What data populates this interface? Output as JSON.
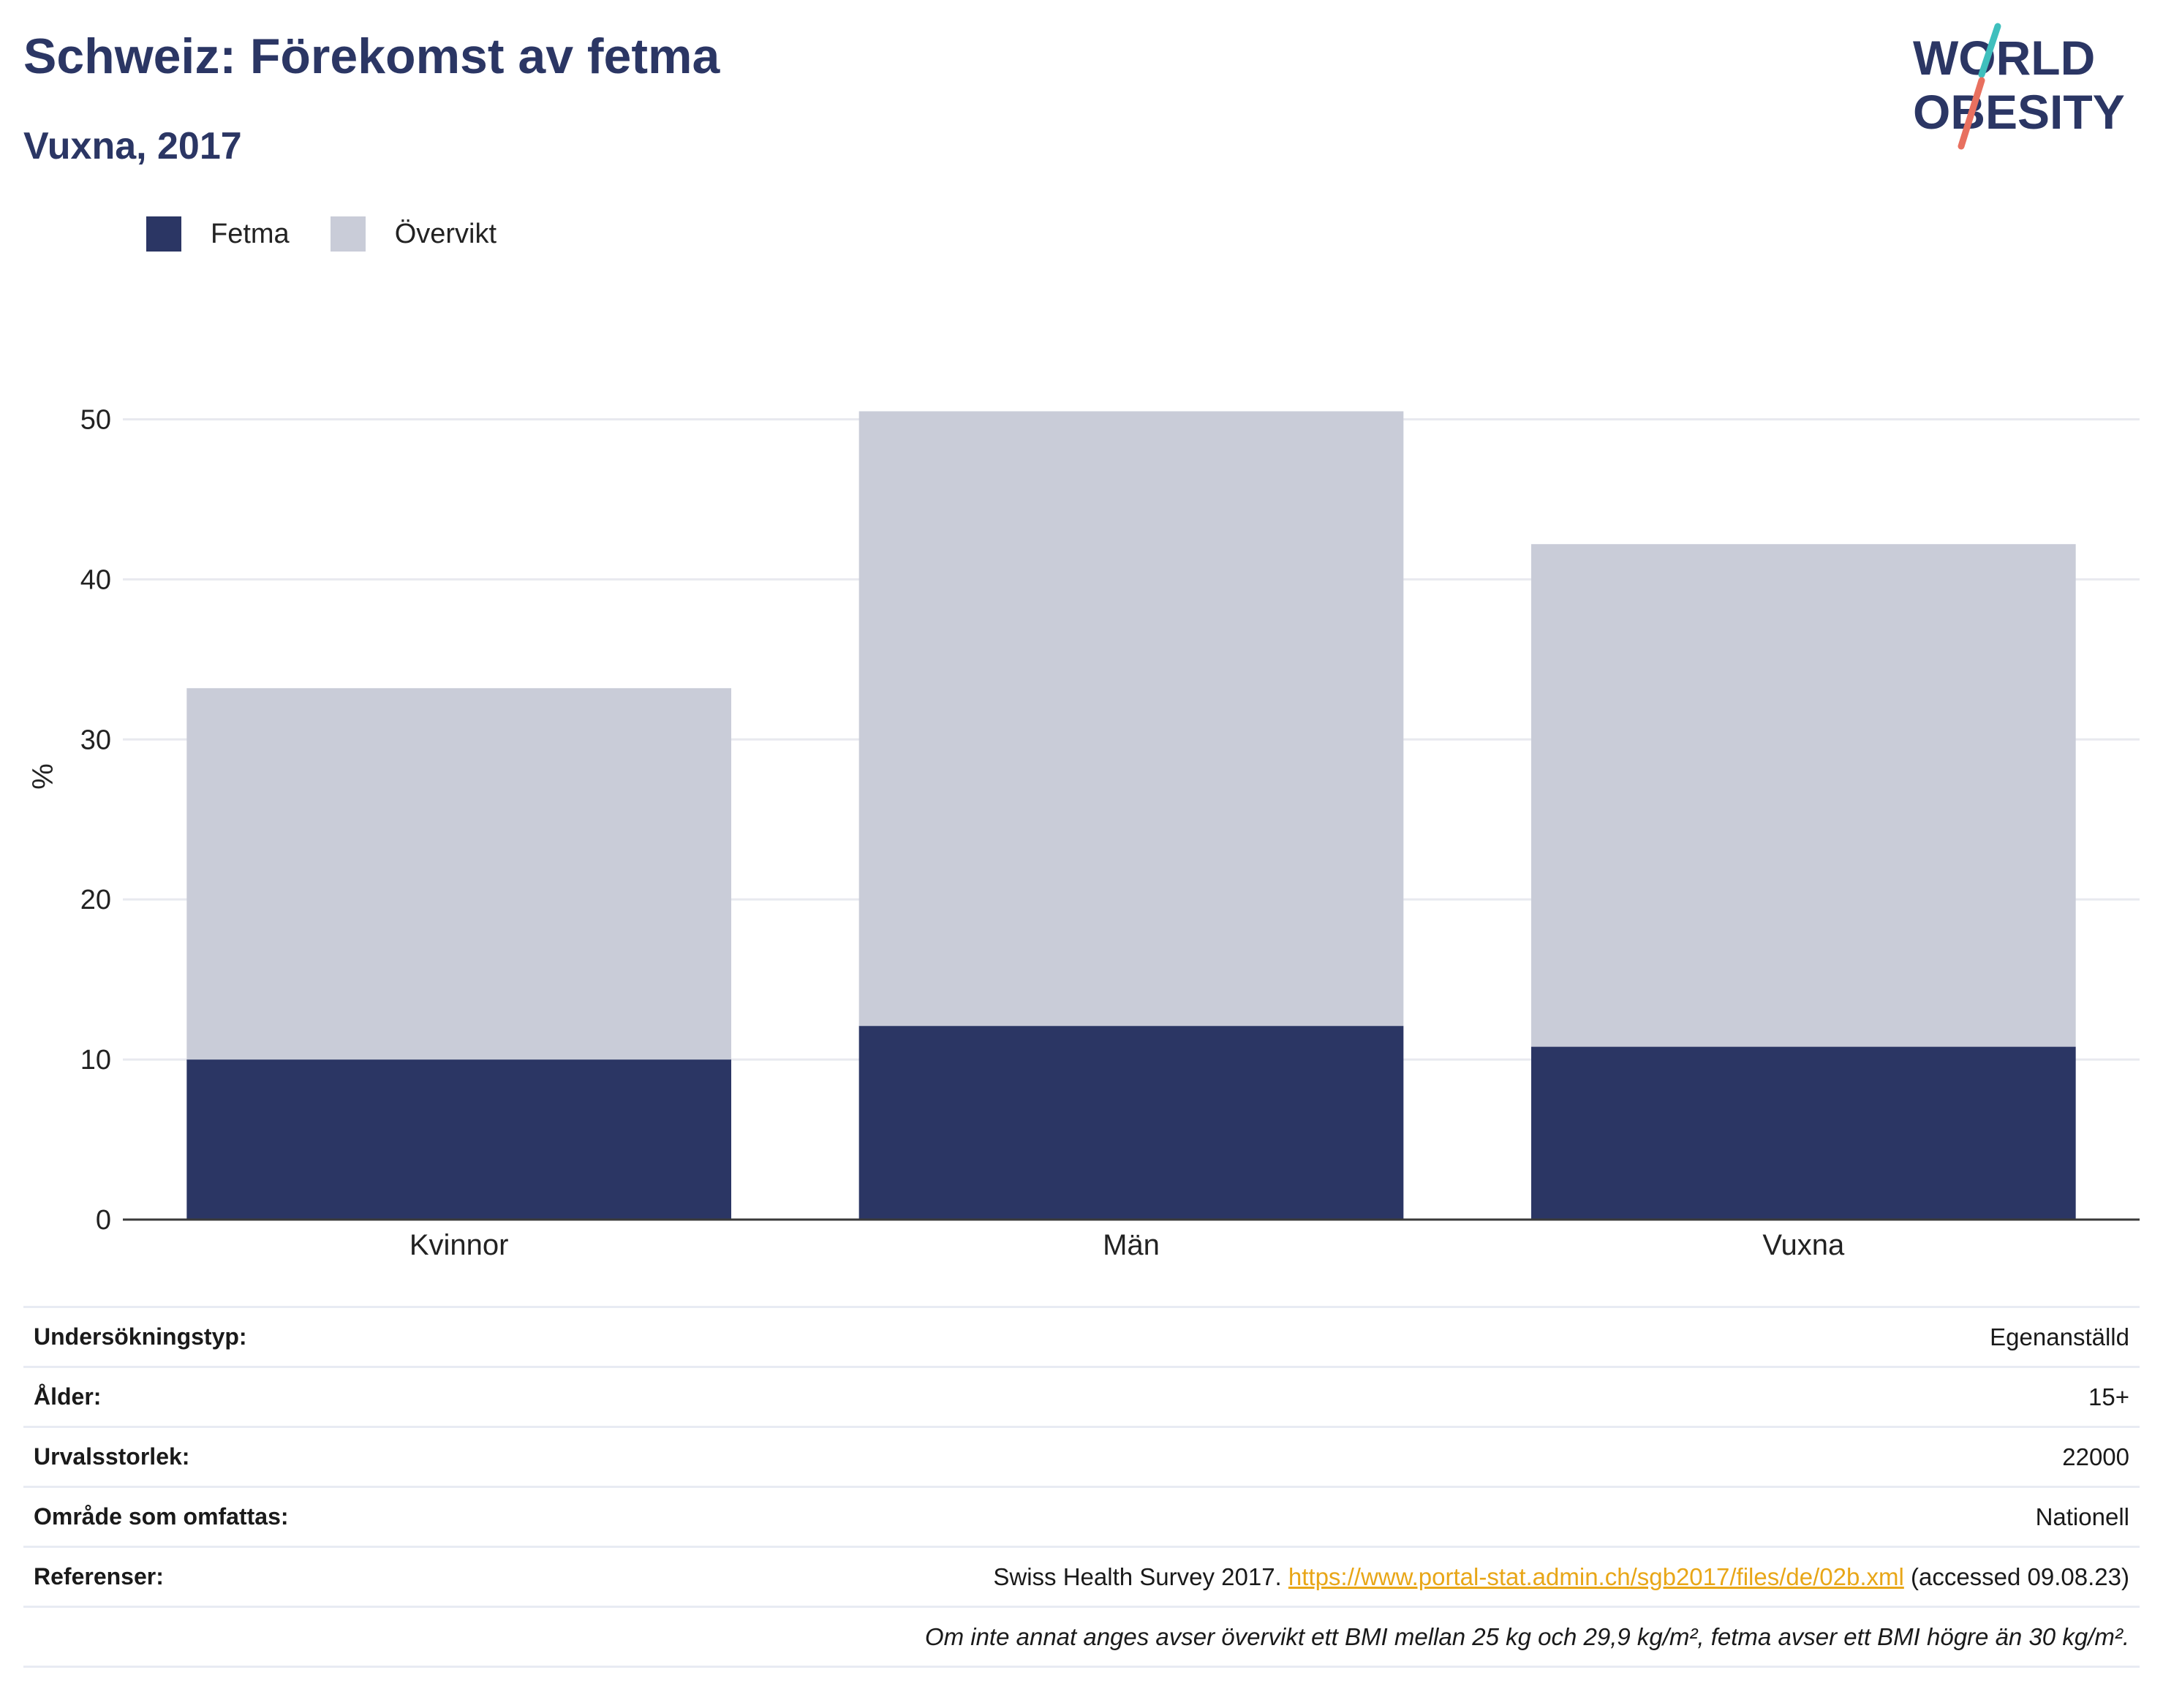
{
  "header": {
    "title": "Schweiz: Förekomst av fetma",
    "subtitle": "Vuxna, 2017"
  },
  "logo": {
    "line1": "WORLD",
    "line2": "OBESITY",
    "text_color": "#2b3664",
    "slash_top_color": "#3fbfbd",
    "slash_bottom_color": "#e8705f"
  },
  "legend": [
    {
      "label": "Fetma",
      "color": "#2b3664"
    },
    {
      "label": "Övervikt",
      "color": "#c9ccd8"
    }
  ],
  "chart_data": {
    "type": "bar",
    "stacked": true,
    "categories": [
      "Kvinnor",
      "Män",
      "Vuxna"
    ],
    "series": [
      {
        "name": "Fetma",
        "values": [
          10.0,
          12.1,
          10.8
        ],
        "color": "#2b3664"
      },
      {
        "name": "Övervikt",
        "values": [
          23.2,
          38.4,
          31.4
        ],
        "color": "#c9ccd8"
      }
    ],
    "ylabel": "%",
    "xlabel": "",
    "ylim": [
      0,
      55
    ],
    "yticks": [
      0,
      10,
      20,
      30,
      40,
      50
    ],
    "grid": true,
    "legend_position": "top-left"
  },
  "info": {
    "rows": [
      {
        "label": "Undersökningstyp:",
        "value": "Egenanställd"
      },
      {
        "label": "Ålder:",
        "value": "15+"
      },
      {
        "label": "Urvalsstorlek:",
        "value": "22000"
      },
      {
        "label": "Område som omfattas:",
        "value": "Nationell"
      }
    ],
    "reference": {
      "label": "Referenser:",
      "prefix": "Swiss Health Survey 2017. ",
      "link": "https://www.portal-stat.admin.ch/sgb2017/files/de/02b.xml",
      "suffix": " (accessed 09.08.23)"
    },
    "note": "Om inte annat anges avser övervikt ett BMI mellan 25 kg och 29,9 kg/m², fetma avser ett BMI högre än 30 kg/m²."
  }
}
